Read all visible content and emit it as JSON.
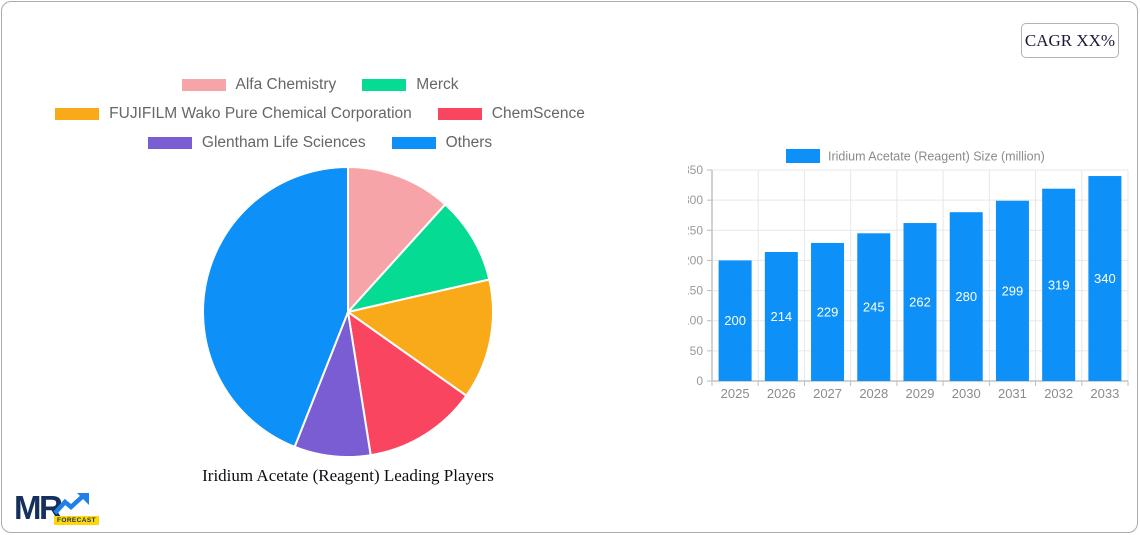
{
  "cagr_button": {
    "label": "CAGR XX%"
  },
  "logo": {
    "text": "MR",
    "badge": "FORECAST",
    "navy": "#15305E",
    "arrow_blue": "#1E80E8",
    "badge_yellow": "#FFD60A"
  },
  "chart_data": [
    {
      "type": "pie",
      "title": "Iridium Acetate (Reagent) Leading Players",
      "legend_position": "top",
      "direction": "clockwise",
      "start_angle": "12-oclock",
      "slice_border_color": "#FFFFFF",
      "slices": [
        {
          "label": "Alfa Chemistry",
          "percent": 11.7,
          "color": "#F7A4A9"
        },
        {
          "label": "Merck",
          "percent": 9.7,
          "color": "#06DB93"
        },
        {
          "label": "FUJIFILM Wako Pure Chemical Corporation",
          "percent": 13.4,
          "color": "#F9AA18"
        },
        {
          "label": "ChemScence",
          "percent": 12.7,
          "color": "#F9455F"
        },
        {
          "label": "Glentham Life Sciences",
          "percent": 8.5,
          "color": "#7A5DD3"
        },
        {
          "label": "Others",
          "percent": 44.0,
          "color": "#0D90F8"
        }
      ]
    },
    {
      "type": "bar",
      "legend": "Iridium Acetate (Reagent) Size (million)",
      "categories": [
        "2025",
        "2026",
        "2027",
        "2028",
        "2029",
        "2030",
        "2031",
        "2032",
        "2033"
      ],
      "values": [
        200,
        214,
        229,
        245,
        262,
        280,
        299,
        319,
        340
      ],
      "bar_color": "#0D90F8",
      "value_label_color": "#FFFFFF",
      "ylabel": "",
      "xlabel": "",
      "ylim": [
        0,
        350
      ],
      "ytick_step": 50,
      "grid": true,
      "legend_position": "top",
      "axis_tick_color": "#999999",
      "category_label_color": "#8c8c8c"
    }
  ]
}
